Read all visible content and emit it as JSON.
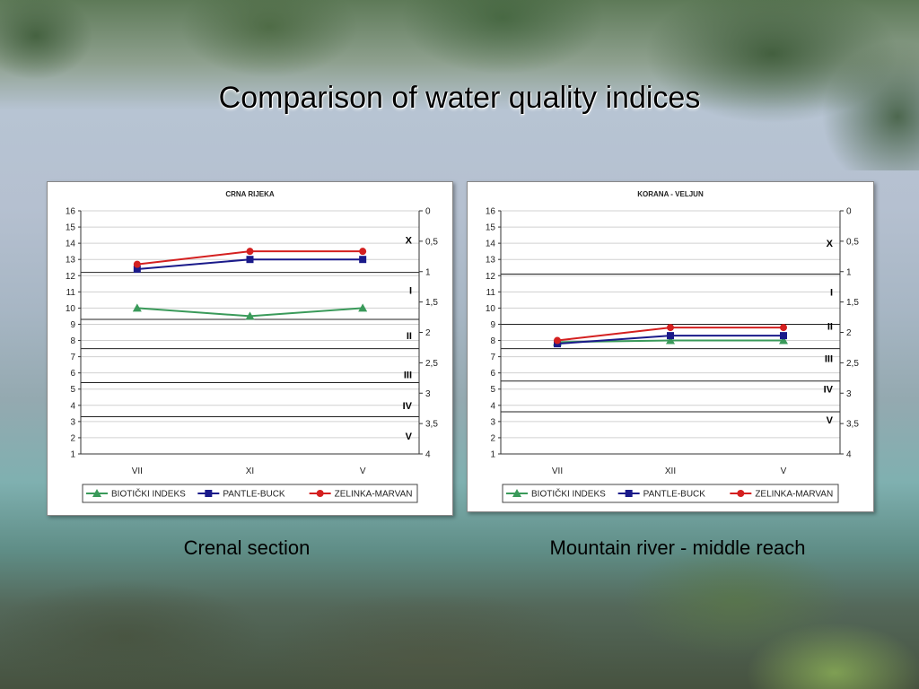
{
  "slide": {
    "title": "Comparison of water quality indices",
    "caption_left": "Crenal section",
    "caption_right": "Mountain river - middle reach"
  },
  "chart_data": [
    {
      "type": "line",
      "title": "CRNA RIJEKA",
      "categories": [
        "VII",
        "XI",
        "V"
      ],
      "ylim": [
        1,
        16
      ],
      "y_ticks": [
        1,
        2,
        3,
        4,
        5,
        6,
        7,
        8,
        9,
        10,
        11,
        12,
        13,
        14,
        15,
        16
      ],
      "y2lim": [
        4,
        0
      ],
      "y2_ticks": [
        "0",
        "0,5",
        "1",
        "1,5",
        "2",
        "2,5",
        "3",
        "3,5",
        "4"
      ],
      "class_lines": [
        12.2,
        9.3,
        7.5,
        5.4,
        3.3
      ],
      "class_labels": [
        {
          "label": "X",
          "y": 14.2
        },
        {
          "label": "I",
          "y": 11.1
        },
        {
          "label": "II",
          "y": 8.3
        },
        {
          "label": "III",
          "y": 5.9
        },
        {
          "label": "IV",
          "y": 4.0
        },
        {
          "label": "V",
          "y": 2.1
        }
      ],
      "series": [
        {
          "name": "BIOTIČKI INDEKS",
          "values": [
            10,
            9.5,
            10
          ],
          "color": "#3a9a5a",
          "marker": "triangle"
        },
        {
          "name": "PANTLE-BUCK",
          "values": [
            12.4,
            13.0,
            13.0
          ],
          "color": "#1a1a8a",
          "marker": "square"
        },
        {
          "name": "ZELINKA-MARVAN",
          "values": [
            12.7,
            13.5,
            13.5
          ],
          "color": "#d42020",
          "marker": "circle"
        }
      ],
      "grid": true,
      "legend_position": "bottom"
    },
    {
      "type": "line",
      "title": "KORANA - VELJUN",
      "categories": [
        "VII",
        "XII",
        "V"
      ],
      "ylim": [
        1,
        16
      ],
      "y_ticks": [
        1,
        2,
        3,
        4,
        5,
        6,
        7,
        8,
        9,
        10,
        11,
        12,
        13,
        14,
        15,
        16
      ],
      "y2lim": [
        4,
        0
      ],
      "y2_ticks": [
        "0",
        "0,5",
        "1",
        "1,5",
        "2",
        "2,5",
        "3",
        "3,5",
        "4"
      ],
      "class_lines": [
        12.1,
        9.0,
        7.5,
        5.5,
        3.6
      ],
      "class_labels": [
        {
          "label": "X",
          "y": 14.0
        },
        {
          "label": "I",
          "y": 11.0
        },
        {
          "label": "II",
          "y": 8.9
        },
        {
          "label": "III",
          "y": 6.9
        },
        {
          "label": "IV",
          "y": 5.0
        },
        {
          "label": "V",
          "y": 3.1
        }
      ],
      "series": [
        {
          "name": "BIOTIČKI INDEKS",
          "values": [
            7.9,
            8.0,
            8.0
          ],
          "color": "#3a9a5a",
          "marker": "triangle"
        },
        {
          "name": "PANTLE-BUCK",
          "values": [
            7.8,
            8.3,
            8.3
          ],
          "color": "#1a1a8a",
          "marker": "square"
        },
        {
          "name": "ZELINKA-MARVAN",
          "values": [
            8.0,
            8.8,
            8.8
          ],
          "color": "#d42020",
          "marker": "circle"
        }
      ],
      "grid": true,
      "legend_position": "bottom"
    }
  ]
}
